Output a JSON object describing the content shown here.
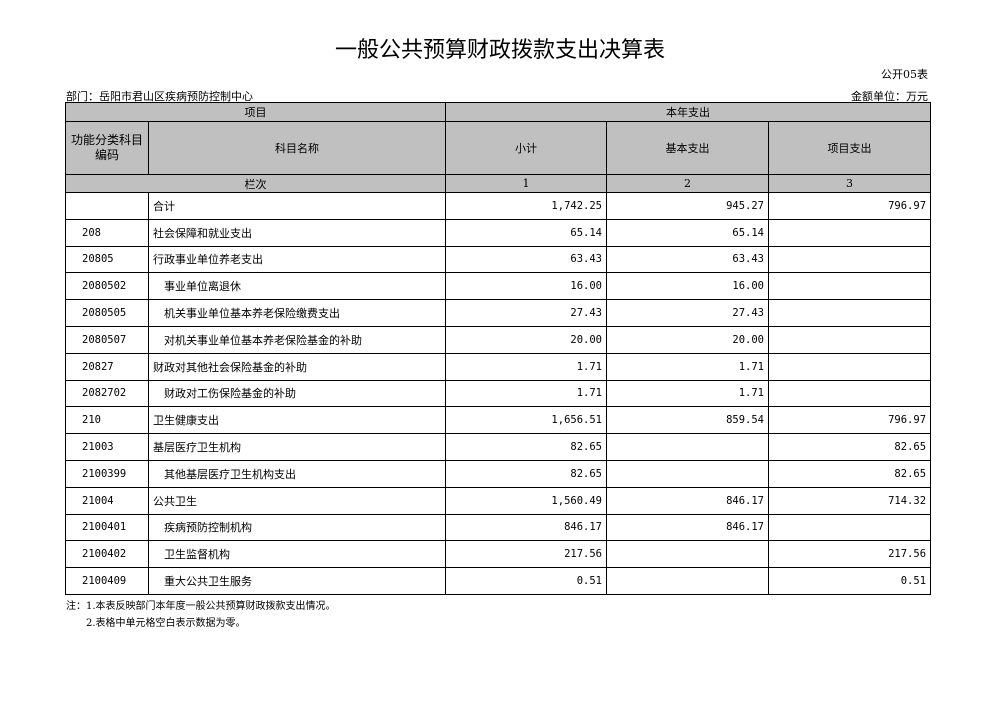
{
  "title": "一般公共预算财政拨款支出决算表",
  "table_no": "公开05表",
  "department": "部门：岳阳市君山区疾病预防控制中心",
  "unit": "金额单位：万元",
  "headers": {
    "item": "项目",
    "current_year": "本年支出",
    "code": "功能分类科目编码",
    "name": "科目名称",
    "subtotal": "小计",
    "basic": "基本支出",
    "project": "项目支出",
    "column_order": "栏次",
    "col1": "1",
    "col2": "2",
    "col3": "3"
  },
  "rows": [
    {
      "code": "",
      "name": "合计",
      "subtotal": "1,742.25",
      "basic": "945.27",
      "project": "796.97"
    },
    {
      "code": "208",
      "name": "社会保障和就业支出",
      "subtotal": "65.14",
      "basic": "65.14",
      "project": ""
    },
    {
      "code": "20805",
      "name": "行政事业单位养老支出",
      "subtotal": "63.43",
      "basic": "63.43",
      "project": ""
    },
    {
      "code": "2080502",
      "name": "　事业单位离退休",
      "subtotal": "16.00",
      "basic": "16.00",
      "project": ""
    },
    {
      "code": "2080505",
      "name": "　机关事业单位基本养老保险缴费支出",
      "subtotal": "27.43",
      "basic": "27.43",
      "project": ""
    },
    {
      "code": "2080507",
      "name": "　对机关事业单位基本养老保险基金的补助",
      "subtotal": "20.00",
      "basic": "20.00",
      "project": ""
    },
    {
      "code": "20827",
      "name": "财政对其他社会保险基金的补助",
      "subtotal": "1.71",
      "basic": "1.71",
      "project": ""
    },
    {
      "code": "2082702",
      "name": "　财政对工伤保险基金的补助",
      "subtotal": "1.71",
      "basic": "1.71",
      "project": ""
    },
    {
      "code": "210",
      "name": "卫生健康支出",
      "subtotal": "1,656.51",
      "basic": "859.54",
      "project": "796.97"
    },
    {
      "code": "21003",
      "name": "基层医疗卫生机构",
      "subtotal": "82.65",
      "basic": "",
      "project": "82.65"
    },
    {
      "code": "2100399",
      "name": "　其他基层医疗卫生机构支出",
      "subtotal": "82.65",
      "basic": "",
      "project": "82.65"
    },
    {
      "code": "21004",
      "name": "公共卫生",
      "subtotal": "1,560.49",
      "basic": "846.17",
      "project": "714.32"
    },
    {
      "code": "2100401",
      "name": "　疾病预防控制机构",
      "subtotal": "846.17",
      "basic": "846.17",
      "project": ""
    },
    {
      "code": "2100402",
      "name": "　卫生监督机构",
      "subtotal": "217.56",
      "basic": "",
      "project": "217.56"
    },
    {
      "code": "2100409",
      "name": "　重大公共卫生服务",
      "subtotal": "0.51",
      "basic": "",
      "project": "0.51"
    }
  ],
  "notes": [
    "注：1.本表反映部门本年度一般公共预算财政拨款支出情况。",
    "2.表格中单元格空白表示数据为零。"
  ]
}
